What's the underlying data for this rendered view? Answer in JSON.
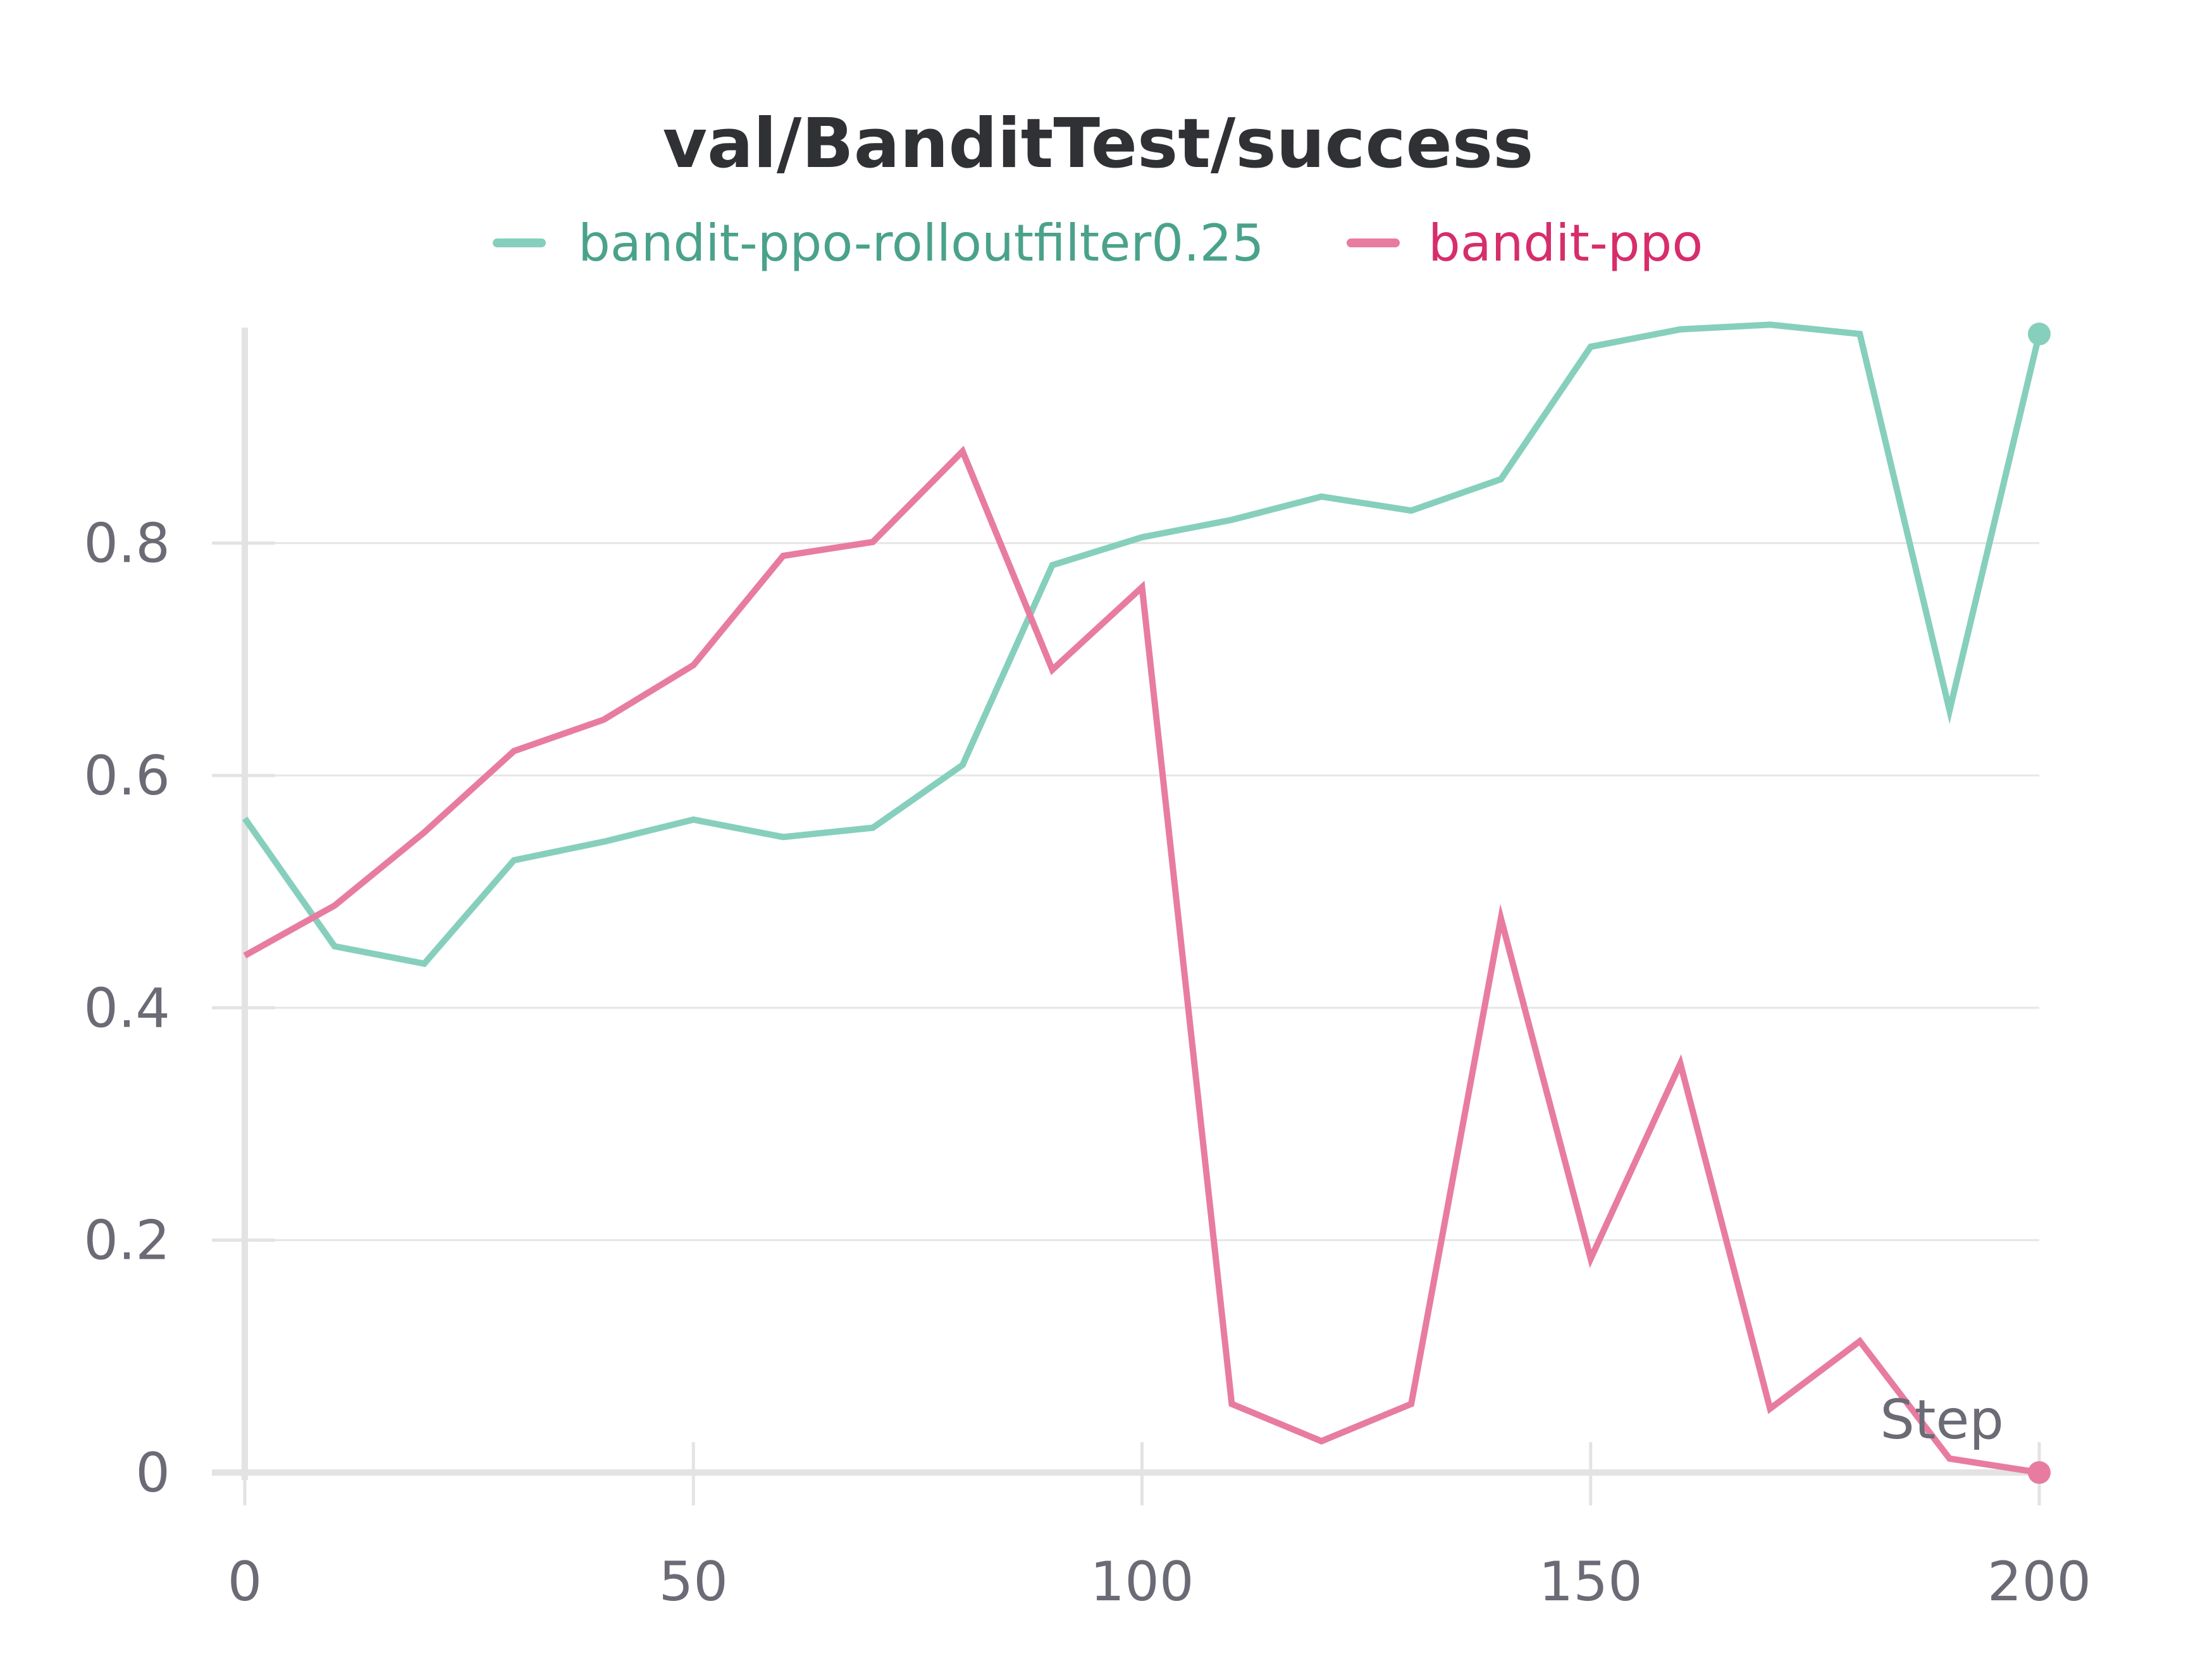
{
  "colors": {
    "series_green": "#86cfbd",
    "series_green_text": "#4aa28a",
    "series_pink": "#e87ca0",
    "series_pink_text": "#d72d6a",
    "grid": "#e6e6e6",
    "axis": "#e3e3e3",
    "tick_text": "#6b6b76",
    "title_text": "#2f3134"
  },
  "chart_data": {
    "type": "line",
    "title": "val/BanditTest/success",
    "xlabel": "Step",
    "ylabel": "",
    "xlim": [
      0,
      200
    ],
    "ylim": [
      0,
      0.98
    ],
    "xticks": [
      0,
      50,
      100,
      150,
      200
    ],
    "xtick_labels": [
      "0",
      "50",
      "100",
      "150",
      "200"
    ],
    "yticks": [
      0,
      0.2,
      0.4,
      0.6,
      0.8
    ],
    "ytick_labels": [
      "0",
      "0.2",
      "0.4",
      "0.6",
      "0.8"
    ],
    "grid": true,
    "legend_position": "top",
    "series": [
      {
        "name": "bandit-ppo-rolloutfilter0.25",
        "color_key": "series_green",
        "x": [
          0,
          10,
          20,
          30,
          40,
          50,
          60,
          70,
          80,
          90,
          100,
          110,
          120,
          130,
          140,
          150,
          160,
          170,
          180,
          190,
          200
        ],
        "y": [
          0.563,
          0.453,
          0.438,
          0.527,
          0.543,
          0.562,
          0.547,
          0.555,
          0.609,
          0.781,
          0.805,
          0.82,
          0.84,
          0.828,
          0.855,
          0.969,
          0.984,
          0.988,
          0.98,
          0.656,
          0.98
        ]
      },
      {
        "name": "bandit-ppo",
        "color_key": "series_pink",
        "x": [
          0,
          10,
          20,
          30,
          40,
          50,
          60,
          70,
          80,
          90,
          100,
          110,
          120,
          130,
          140,
          150,
          160,
          170,
          180,
          190,
          200
        ],
        "y": [
          0.445,
          0.488,
          0.551,
          0.621,
          0.648,
          0.695,
          0.789,
          0.801,
          0.879,
          0.691,
          0.762,
          0.059,
          0.027,
          0.059,
          0.477,
          0.184,
          0.352,
          0.055,
          0.113,
          0.012,
          0.0
        ]
      }
    ]
  }
}
